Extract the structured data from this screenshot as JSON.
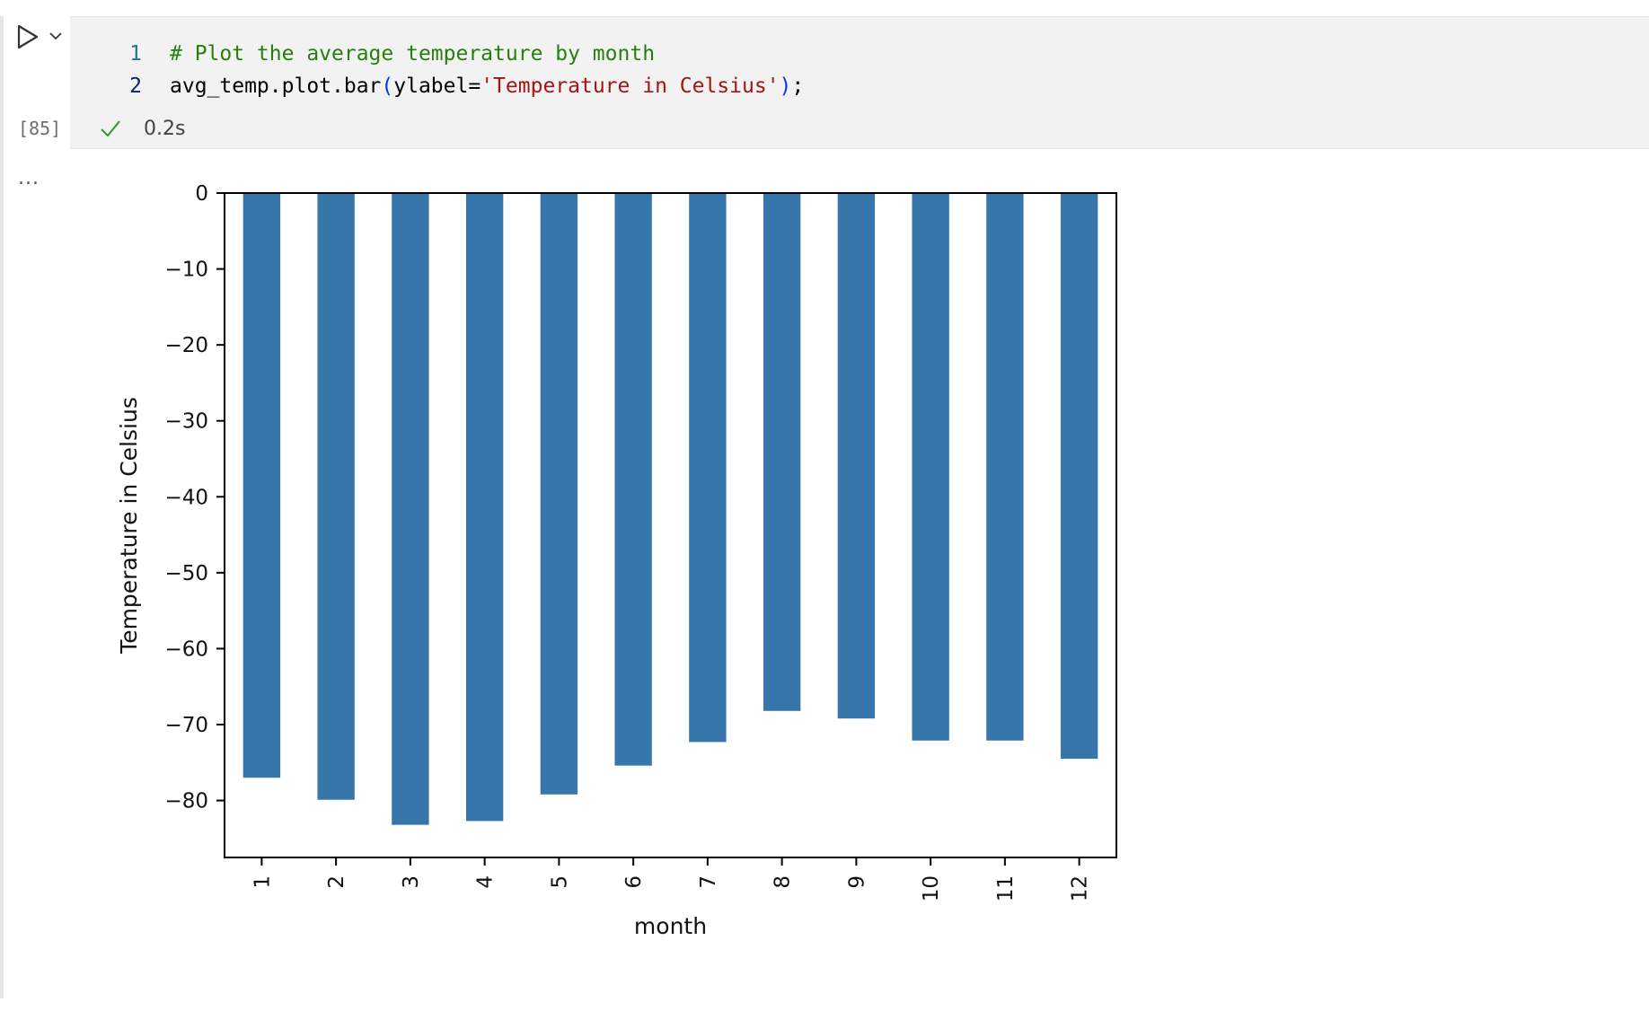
{
  "cell": {
    "execution_count": "[85]",
    "exec_time": "0.2s",
    "status_icon": "check-icon",
    "output_toggle": "...",
    "code_lines": [
      {
        "number": "1",
        "parts": [
          {
            "cls": "tok-comment",
            "text": "# Plot the average temperature by month"
          }
        ]
      },
      {
        "number": "2",
        "parts": [
          {
            "cls": "tok-plain",
            "text": "avg_temp.plot.bar"
          },
          {
            "cls": "tok-paren",
            "text": "("
          },
          {
            "cls": "tok-plain",
            "text": "ylabel="
          },
          {
            "cls": "tok-string",
            "text": "'Temperature in Celsius'"
          },
          {
            "cls": "tok-paren",
            "text": ")"
          },
          {
            "cls": "tok-plain",
            "text": ";"
          }
        ]
      }
    ]
  },
  "colors": {
    "bar": "#3776ab",
    "comment": "#267f0d",
    "string": "#a31515",
    "paren": "#0431fa",
    "check": "#3a8f3a"
  },
  "chart_data": {
    "type": "bar",
    "categories": [
      "1",
      "2",
      "3",
      "4",
      "5",
      "6",
      "7",
      "8",
      "9",
      "10",
      "11",
      "12"
    ],
    "values": [
      -77.0,
      -79.9,
      -83.2,
      -82.7,
      -79.2,
      -75.4,
      -72.3,
      -68.2,
      -69.2,
      -72.1,
      -72.1,
      -74.5
    ],
    "title": "",
    "xlabel": "month",
    "ylabel": "Temperature in Celsius",
    "ylim": [
      -87.5,
      0
    ],
    "yticks": [
      0,
      -10,
      -20,
      -30,
      -40,
      -50,
      -60,
      -70,
      -80
    ],
    "ytick_labels": [
      "0",
      "−10",
      "−20",
      "−30",
      "−40",
      "−50",
      "−60",
      "−70",
      "−80"
    ],
    "grid": false,
    "legend": "none"
  }
}
